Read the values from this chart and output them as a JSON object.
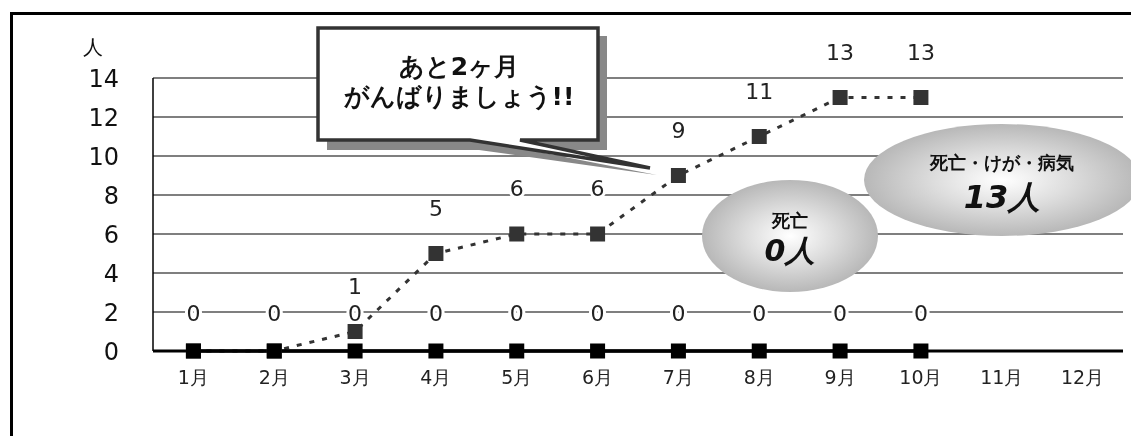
{
  "chart_data": {
    "type": "line",
    "ylabel": "人",
    "categories": [
      "1月",
      "2月",
      "3月",
      "4月",
      "5月",
      "6月",
      "7月",
      "8月",
      "9月",
      "10月",
      "11月",
      "12月"
    ],
    "series": [
      {
        "color": "#333333",
        "line_style": "dashed",
        "values": [
          0,
          0,
          1,
          5,
          6,
          6,
          9,
          11,
          13,
          13,
          null,
          null
        ],
        "value_labels": [
          null,
          null,
          "1",
          "5",
          "6",
          "6",
          "9",
          "11",
          "13",
          "13",
          null,
          null
        ]
      },
      {
        "color": "#000000",
        "line_style": "solid",
        "values": [
          0,
          0,
          0,
          0,
          0,
          0,
          0,
          0,
          0,
          0,
          null,
          null
        ]
      }
    ],
    "ylim": [
      0,
      14
    ],
    "yticks": [
      0,
      2,
      4,
      6,
      8,
      10,
      12,
      14
    ],
    "grid": "y",
    "legend": false,
    "marker": "square",
    "data_labels": true,
    "annotations": [
      "あと2ヶ月",
      "がんばりましょう!!",
      "死亡\n0人",
      "死亡・けが・病気\n13人"
    ]
  }
}
